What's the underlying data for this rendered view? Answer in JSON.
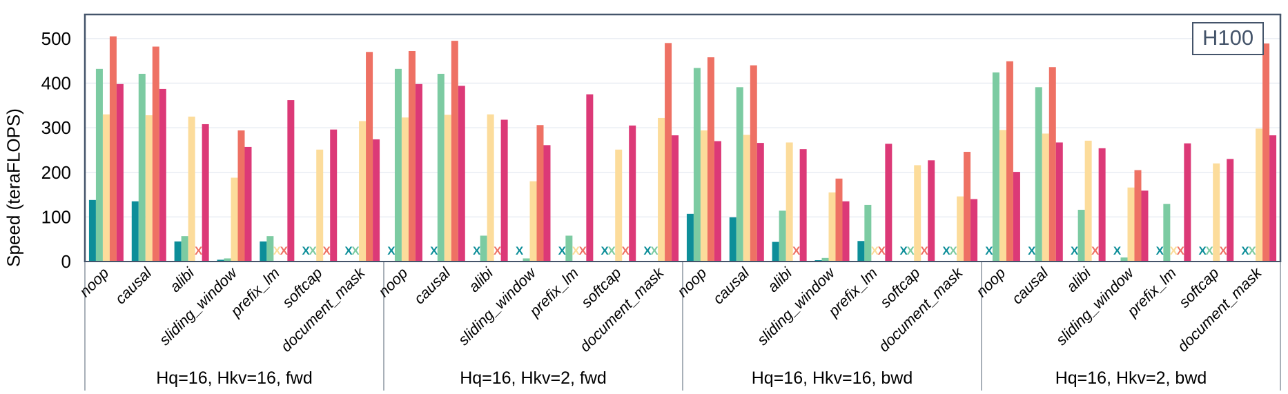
{
  "chart_data": {
    "type": "bar",
    "device_badge": "H100",
    "ylabel": "Speed (teraFLOPS)",
    "ylim": [
      0,
      554
    ],
    "yticks": [
      0,
      100,
      200,
      300,
      400,
      500
    ],
    "grid": true,
    "legend": "none",
    "missing_marker": "X",
    "categories": [
      "noop",
      "causal",
      "alibi",
      "sliding_window",
      "prefix_lm",
      "softcap",
      "document_mask"
    ],
    "series_names": [
      "teal",
      "green",
      "yellow",
      "salmon",
      "magenta"
    ],
    "series_colors": [
      "#0d8e99",
      "#7ccba2",
      "#fcdc9b",
      "#ee7164",
      "#dc3977"
    ],
    "groups": [
      {
        "label": "Hq=16, Hkv=16, fwd",
        "values": [
          [
            138,
            432,
            330,
            505,
            398
          ],
          [
            135,
            421,
            328,
            482,
            387
          ],
          [
            45,
            57,
            325,
            null,
            308
          ],
          [
            4,
            7,
            188,
            294,
            257
          ],
          [
            45,
            57,
            null,
            null,
            362
          ],
          [
            null,
            null,
            251,
            null,
            296
          ],
          [
            null,
            null,
            315,
            470,
            274
          ]
        ]
      },
      {
        "label": "Hq=16, Hkv=2, fwd",
        "values": [
          [
            null,
            432,
            323,
            472,
            398
          ],
          [
            null,
            421,
            329,
            495,
            394
          ],
          [
            null,
            58,
            330,
            null,
            318
          ],
          [
            null,
            7,
            180,
            306,
            261
          ],
          [
            null,
            58,
            null,
            null,
            375
          ],
          [
            null,
            null,
            251,
            null,
            305
          ],
          [
            null,
            null,
            322,
            490,
            283
          ]
        ]
      },
      {
        "label": "Hq=16, Hkv=16, bwd",
        "values": [
          [
            107,
            434,
            294,
            458,
            270
          ],
          [
            99,
            391,
            284,
            440,
            266
          ],
          [
            44,
            114,
            267,
            null,
            252
          ],
          [
            3,
            8,
            155,
            186,
            135
          ],
          [
            46,
            127,
            null,
            null,
            264
          ],
          [
            null,
            null,
            216,
            null,
            227
          ],
          [
            null,
            null,
            146,
            246,
            140
          ]
        ]
      },
      {
        "label": "Hq=16, Hkv=2, bwd",
        "values": [
          [
            null,
            424,
            295,
            449,
            201
          ],
          [
            null,
            391,
            287,
            436,
            267
          ],
          [
            null,
            116,
            271,
            null,
            254
          ],
          [
            null,
            9,
            166,
            205,
            159
          ],
          [
            null,
            129,
            null,
            null,
            265
          ],
          [
            null,
            null,
            220,
            null,
            230
          ],
          [
            null,
            null,
            298,
            489,
            283
          ]
        ]
      }
    ]
  },
  "colors": {
    "frame": "#44546a",
    "grid": "#e9edf3",
    "separator": "#8b95a1",
    "text": "#000000",
    "badge_text": "#44546a",
    "background": "#ffffff"
  }
}
